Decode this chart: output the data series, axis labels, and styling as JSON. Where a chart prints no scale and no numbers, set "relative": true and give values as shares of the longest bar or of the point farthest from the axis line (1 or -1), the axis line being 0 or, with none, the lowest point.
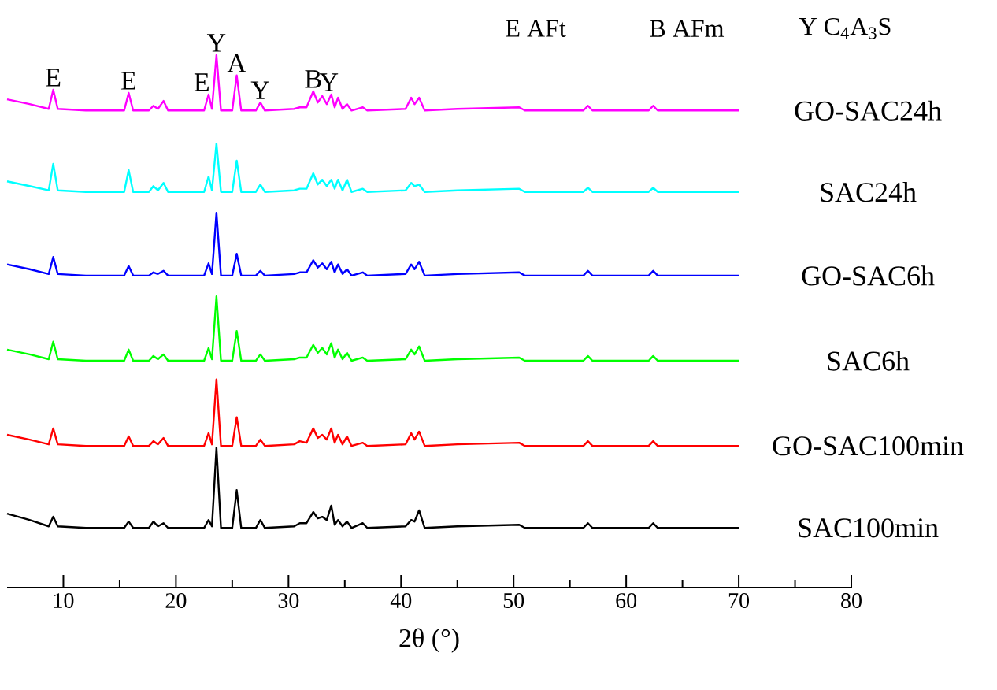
{
  "chart_data": {
    "type": "line",
    "relative": true,
    "xlabel": "2θ (°)",
    "xlim": [
      5,
      80
    ],
    "xticks": [
      10,
      20,
      30,
      40,
      50,
      60,
      70,
      80
    ],
    "x": [
      5,
      7,
      8.7,
      9.1,
      9.5,
      12,
      15.4,
      15.8,
      16.2,
      17.6,
      18.0,
      18.4,
      18.9,
      19.3,
      22.5,
      22.9,
      23.2,
      23.6,
      24.0,
      25.0,
      25.4,
      25.8,
      27.1,
      27.5,
      27.9,
      30.5,
      31.0,
      31.6,
      32.2,
      32.6,
      33.0,
      33.4,
      33.8,
      34.1,
      34.4,
      34.8,
      35.2,
      35.6,
      36.6,
      37.0,
      40.4,
      40.9,
      41.2,
      41.6,
      42.1,
      45.0,
      50.5,
      51.0,
      56.2,
      56.6,
      57.0,
      62.0,
      62.4,
      62.8,
      70.0
    ],
    "series": [
      {
        "name": "GO-SAC24h",
        "color": "#ff00ff",
        "values": [
          0.917,
          0.908,
          0.899,
          0.935,
          0.899,
          0.896,
          0.896,
          0.929,
          0.896,
          0.896,
          0.905,
          0.899,
          0.914,
          0.896,
          0.896,
          0.926,
          0.899,
          1.0,
          0.896,
          0.896,
          0.962,
          0.896,
          0.896,
          0.911,
          0.896,
          0.899,
          0.902,
          0.902,
          0.932,
          0.911,
          0.923,
          0.908,
          0.926,
          0.902,
          0.92,
          0.899,
          0.908,
          0.896,
          0.902,
          0.896,
          0.899,
          0.92,
          0.908,
          0.92,
          0.896,
          0.899,
          0.902,
          0.896,
          0.896,
          0.905,
          0.896,
          0.896,
          0.905,
          0.896,
          0.896
        ]
      },
      {
        "name": "SAC24h",
        "color": "#00ffff",
        "values": [
          0.763,
          0.754,
          0.746,
          0.796,
          0.746,
          0.743,
          0.743,
          0.784,
          0.743,
          0.743,
          0.754,
          0.746,
          0.76,
          0.743,
          0.743,
          0.772,
          0.746,
          0.834,
          0.743,
          0.743,
          0.802,
          0.743,
          0.743,
          0.757,
          0.743,
          0.746,
          0.749,
          0.749,
          0.778,
          0.757,
          0.766,
          0.754,
          0.766,
          0.749,
          0.766,
          0.746,
          0.766,
          0.743,
          0.749,
          0.743,
          0.746,
          0.76,
          0.754,
          0.757,
          0.743,
          0.746,
          0.749,
          0.743,
          0.743,
          0.751,
          0.743,
          0.743,
          0.751,
          0.743,
          0.743
        ]
      },
      {
        "name": "GO-SAC6h",
        "color": "#0000ff",
        "values": [
          0.607,
          0.598,
          0.589,
          0.621,
          0.589,
          0.586,
          0.586,
          0.604,
          0.586,
          0.586,
          0.592,
          0.589,
          0.595,
          0.586,
          0.586,
          0.609,
          0.589,
          0.704,
          0.586,
          0.586,
          0.627,
          0.586,
          0.586,
          0.595,
          0.586,
          0.589,
          0.592,
          0.592,
          0.615,
          0.601,
          0.609,
          0.598,
          0.612,
          0.592,
          0.607,
          0.589,
          0.598,
          0.586,
          0.592,
          0.586,
          0.589,
          0.607,
          0.598,
          0.612,
          0.586,
          0.589,
          0.592,
          0.586,
          0.586,
          0.595,
          0.586,
          0.586,
          0.595,
          0.586,
          0.586
        ]
      },
      {
        "name": "SAC6h",
        "color": "#00ff00",
        "values": [
          0.447,
          0.438,
          0.429,
          0.462,
          0.429,
          0.426,
          0.426,
          0.447,
          0.426,
          0.426,
          0.435,
          0.429,
          0.438,
          0.426,
          0.426,
          0.45,
          0.429,
          0.547,
          0.426,
          0.426,
          0.482,
          0.426,
          0.426,
          0.438,
          0.426,
          0.429,
          0.432,
          0.432,
          0.456,
          0.441,
          0.45,
          0.438,
          0.459,
          0.432,
          0.447,
          0.429,
          0.441,
          0.426,
          0.432,
          0.426,
          0.429,
          0.447,
          0.438,
          0.453,
          0.426,
          0.429,
          0.432,
          0.426,
          0.426,
          0.435,
          0.426,
          0.426,
          0.435,
          0.426,
          0.426
        ]
      },
      {
        "name": "GO-SAC100min",
        "color": "#ff0000",
        "values": [
          0.287,
          0.278,
          0.269,
          0.299,
          0.269,
          0.266,
          0.266,
          0.284,
          0.266,
          0.266,
          0.275,
          0.269,
          0.281,
          0.266,
          0.266,
          0.29,
          0.269,
          0.391,
          0.266,
          0.266,
          0.32,
          0.266,
          0.266,
          0.278,
          0.266,
          0.269,
          0.275,
          0.272,
          0.299,
          0.281,
          0.287,
          0.278,
          0.299,
          0.272,
          0.287,
          0.269,
          0.284,
          0.266,
          0.272,
          0.266,
          0.269,
          0.29,
          0.278,
          0.293,
          0.266,
          0.269,
          0.272,
          0.266,
          0.266,
          0.275,
          0.266,
          0.266,
          0.275,
          0.266,
          0.266
        ]
      },
      {
        "name": "SAC100min",
        "color": "#000000",
        "values": [
          0.139,
          0.127,
          0.115,
          0.133,
          0.115,
          0.112,
          0.112,
          0.124,
          0.112,
          0.112,
          0.124,
          0.115,
          0.121,
          0.112,
          0.112,
          0.127,
          0.115,
          0.263,
          0.112,
          0.112,
          0.183,
          0.112,
          0.112,
          0.127,
          0.112,
          0.115,
          0.121,
          0.121,
          0.142,
          0.13,
          0.133,
          0.127,
          0.154,
          0.118,
          0.127,
          0.115,
          0.124,
          0.112,
          0.121,
          0.112,
          0.115,
          0.127,
          0.124,
          0.145,
          0.112,
          0.115,
          0.118,
          0.112,
          0.112,
          0.121,
          0.112,
          0.112,
          0.121,
          0.112,
          0.112
        ]
      }
    ],
    "annotations": [
      {
        "text": "E",
        "x": 9.1,
        "y": 0.935
      },
      {
        "text": "E",
        "x": 15.8,
        "y": 0.929
      },
      {
        "text": "E",
        "x": 22.3,
        "y": 0.926
      },
      {
        "text": "Y",
        "x": 23.6,
        "y": 1.0
      },
      {
        "text": "A",
        "x": 25.4,
        "y": 0.962
      },
      {
        "text": "Y",
        "x": 27.5,
        "y": 0.911
      },
      {
        "text": "B",
        "x": 32.2,
        "y": 0.932
      },
      {
        "text": "Y",
        "x": 33.6,
        "y": 0.926
      },
      "E AFt",
      "B AFm",
      "Y C$_{4}$A$_{3}$S"
    ]
  }
}
